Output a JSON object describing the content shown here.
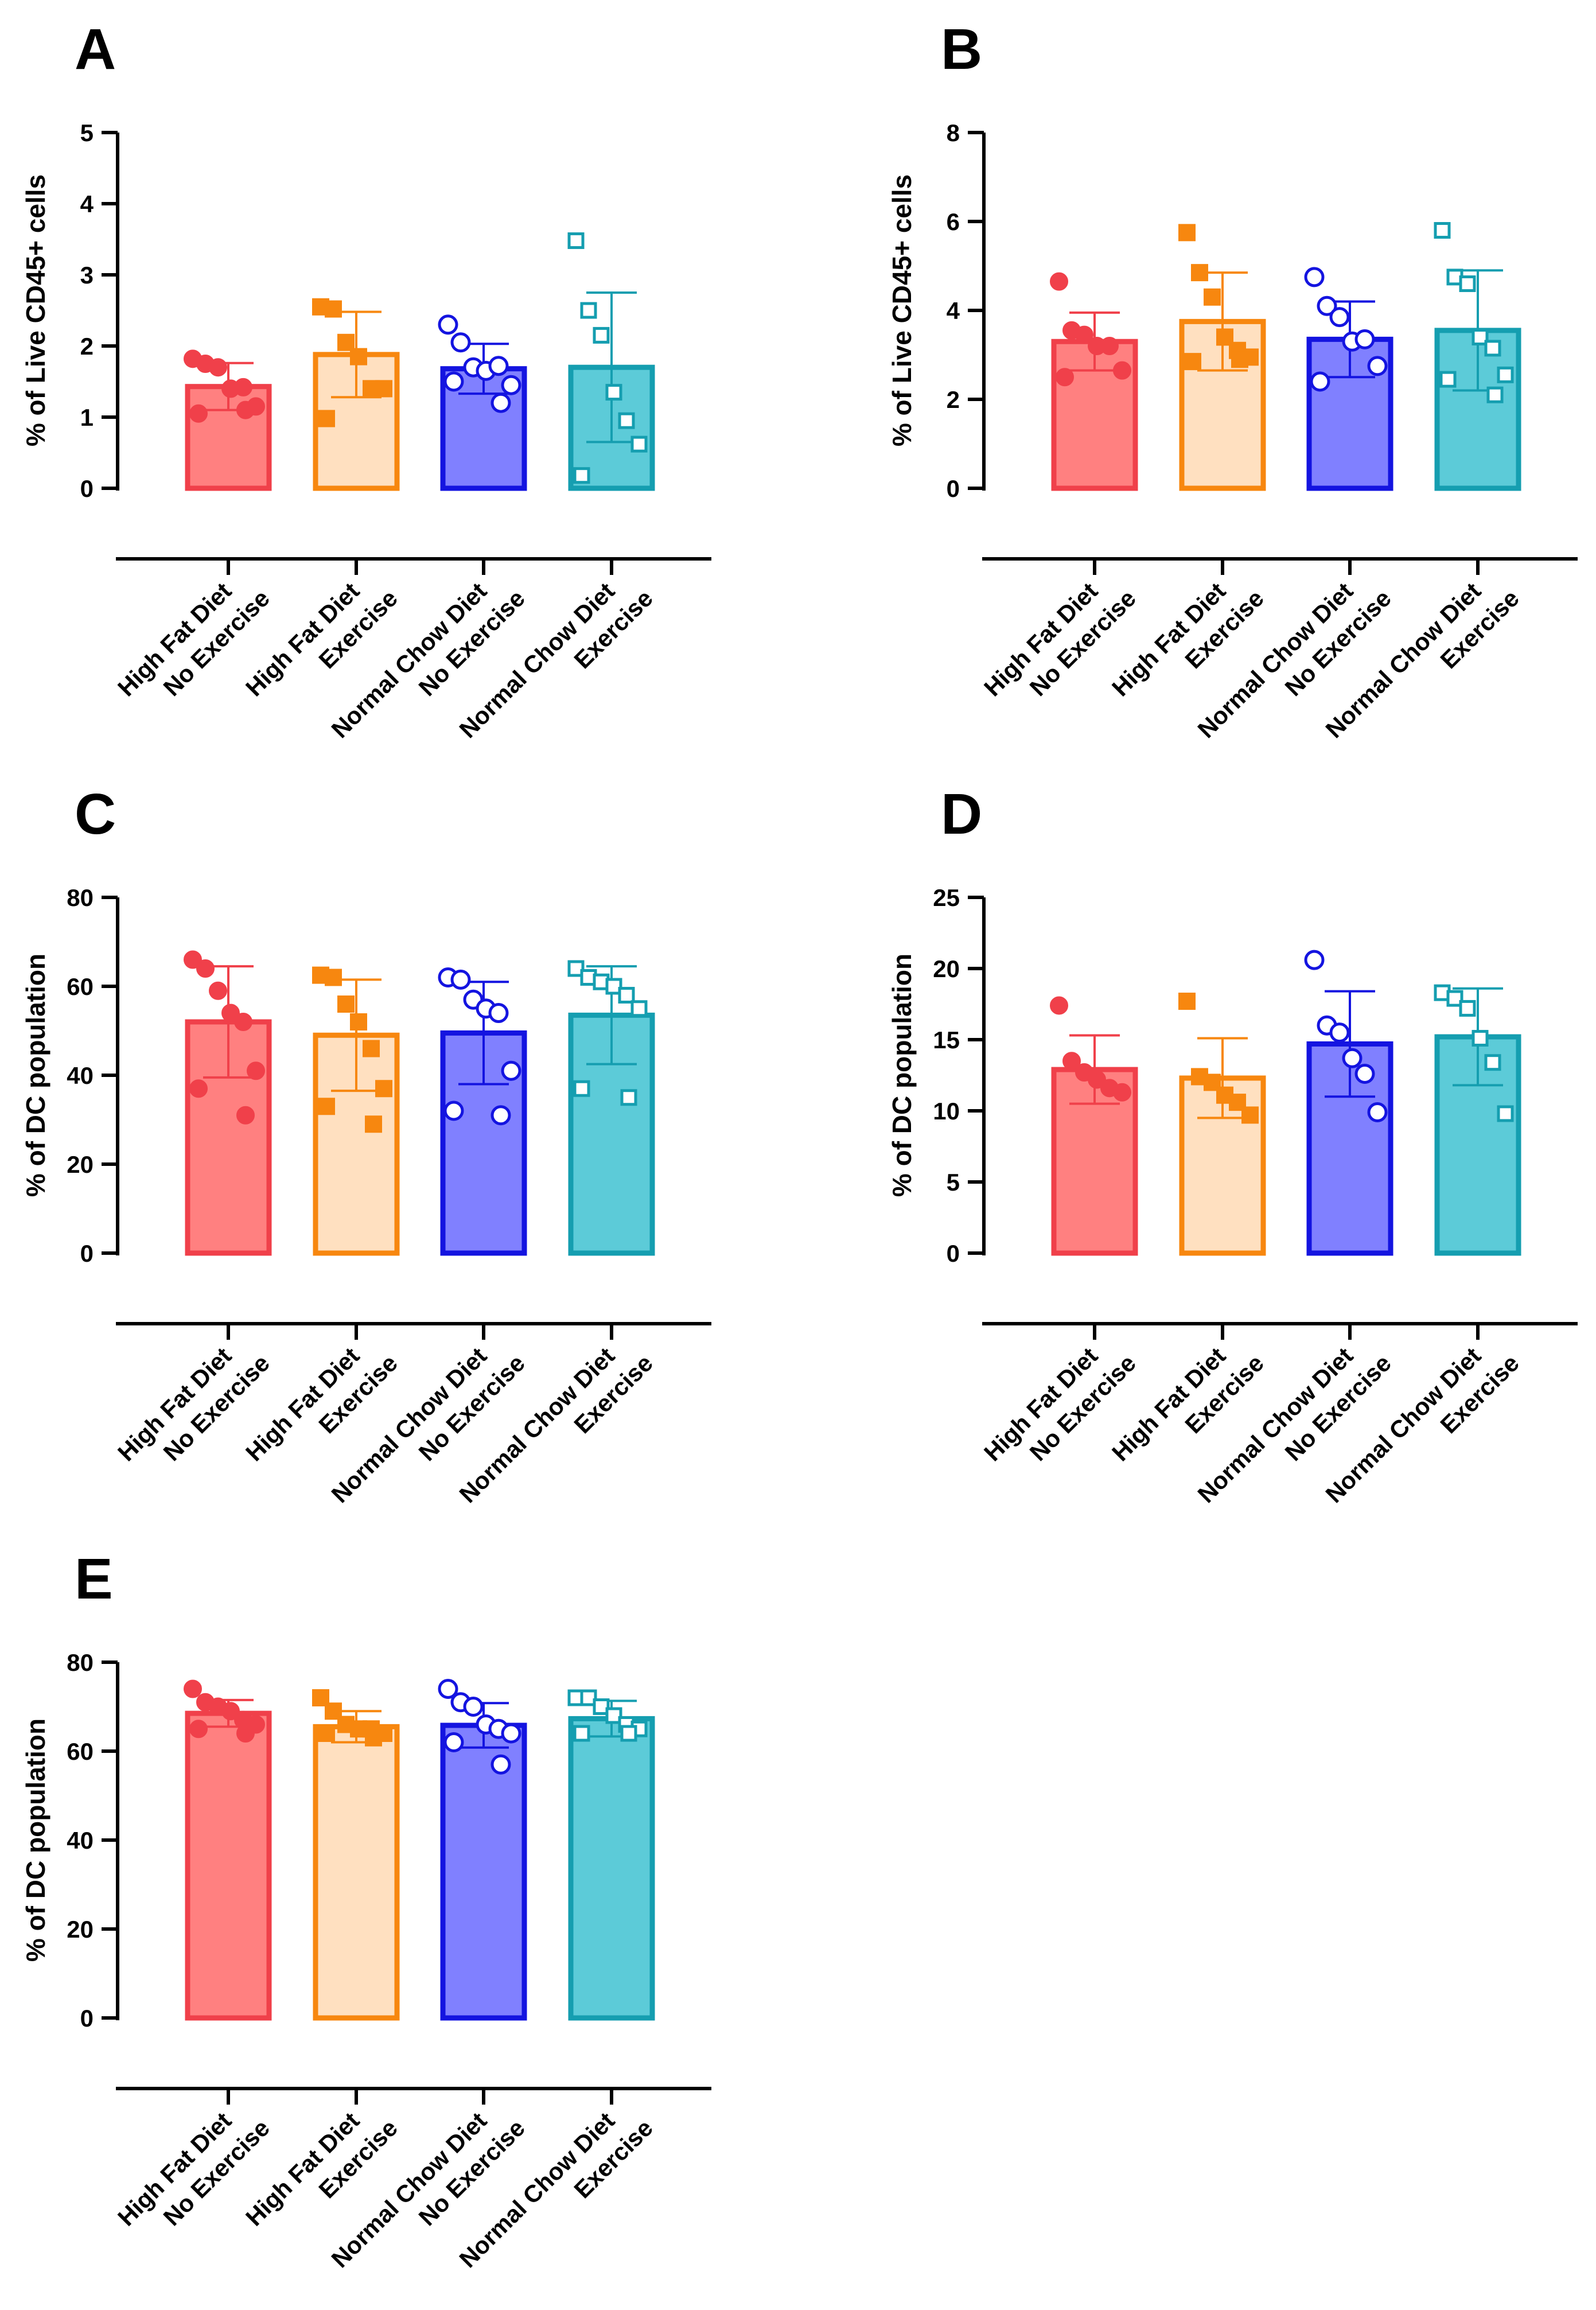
{
  "groups": [
    {
      "line1": "High Fat Diet",
      "line2": "No Exercise",
      "fill": "#FF8080",
      "stroke": "#F0404A",
      "marker": "circle",
      "hollow": false
    },
    {
      "line1": "High Fat Diet",
      "line2": "Exercise",
      "fill": "#FFE0C0",
      "stroke": "#F7870F",
      "marker": "square",
      "hollow": false
    },
    {
      "line1": "Normal Chow Diet",
      "line2": "No Exercise",
      "fill": "#8080FF",
      "stroke": "#1414E0",
      "marker": "circle",
      "hollow": true
    },
    {
      "line1": "Normal Chow Diet",
      "line2": "Exercise",
      "fill": "#5CCBD8",
      "stroke": "#159EB0",
      "marker": "square",
      "hollow": true
    }
  ],
  "chart_data": [
    {
      "panel": "A",
      "type": "bar",
      "ylabel": "% of Live CD45+ cells",
      "ylim": [
        0,
        5
      ],
      "yticks": [
        0,
        1,
        2,
        3,
        4,
        5
      ],
      "categories": [
        "High Fat Diet No Exercise",
        "High Fat Diet Exercise",
        "Normal Chow Diet No Exercise",
        "Normal Chow Diet Exercise"
      ],
      "values": [
        1.43,
        1.88,
        1.68,
        1.7
      ],
      "sd": [
        0.33,
        0.6,
        0.35,
        1.05
      ],
      "points": [
        [
          1.82,
          1.75,
          1.7,
          1.4,
          1.42,
          1.15,
          1.05,
          1.1
        ],
        [
          2.55,
          2.52,
          2.05,
          1.85,
          1.4,
          1.4,
          0.98
        ],
        [
          2.3,
          2.05,
          1.7,
          1.65,
          1.72,
          1.45,
          1.5,
          1.2
        ],
        [
          3.48,
          2.5,
          2.15,
          1.35,
          0.95,
          0.62,
          0.18
        ]
      ]
    },
    {
      "panel": "B",
      "type": "bar",
      "ylabel": "% of Live CD45+ cells",
      "ylim": [
        0,
        8
      ],
      "yticks": [
        0,
        2,
        4,
        6,
        8
      ],
      "categories": [
        "High Fat Diet No Exercise",
        "High Fat Diet Exercise",
        "Normal Chow Diet No Exercise",
        "Normal Chow Diet Exercise"
      ],
      "values": [
        3.3,
        3.75,
        3.35,
        3.55
      ],
      "sd": [
        0.65,
        1.1,
        0.85,
        1.35
      ],
      "points": [
        [
          4.65,
          3.55,
          3.45,
          3.2,
          3.2,
          2.65,
          2.5
        ],
        [
          5.75,
          4.85,
          4.3,
          3.4,
          3.1,
          2.95,
          2.85,
          2.9
        ],
        [
          4.75,
          4.1,
          3.85,
          3.3,
          3.35,
          2.75,
          2.4
        ],
        [
          5.8,
          4.75,
          4.6,
          3.4,
          3.15,
          2.55,
          2.45,
          2.1
        ]
      ]
    },
    {
      "panel": "C",
      "type": "bar",
      "ylabel": "% of DC population",
      "ylim": [
        0,
        80
      ],
      "yticks": [
        0,
        20,
        40,
        60,
        80
      ],
      "categories": [
        "High Fat Diet No Exercise",
        "High Fat Diet Exercise",
        "Normal Chow Diet No Exercise",
        "Normal Chow Diet Exercise"
      ],
      "values": [
        52,
        49,
        49.5,
        53.5
      ],
      "sd": [
        12.5,
        12.5,
        11.5,
        11
      ],
      "points": [
        [
          66,
          64,
          59,
          54,
          52,
          41,
          37,
          31
        ],
        [
          62.5,
          62,
          56,
          52,
          46,
          37,
          33,
          29
        ],
        [
          62,
          61.5,
          57,
          55,
          54,
          41,
          32,
          31
        ],
        [
          64,
          62,
          61,
          60,
          58,
          55,
          37,
          35
        ]
      ]
    },
    {
      "panel": "D",
      "type": "bar",
      "ylabel": "% of DC population",
      "ylim": [
        0,
        25
      ],
      "yticks": [
        0,
        5,
        10,
        15,
        20,
        25
      ],
      "categories": [
        "High Fat Diet No Exercise",
        "High Fat Diet Exercise",
        "Normal Chow Diet No Exercise",
        "Normal Chow Diet Exercise"
      ],
      "values": [
        12.9,
        12.3,
        14.7,
        15.2
      ],
      "sd": [
        2.4,
        2.8,
        3.7,
        3.4
      ],
      "points": [
        [
          17.4,
          13.5,
          12.7,
          12.2,
          11.6,
          11.3
        ],
        [
          17.7,
          12.4,
          12.0,
          11.1,
          10.6,
          9.7
        ],
        [
          20.6,
          16.0,
          15.5,
          13.7,
          12.6,
          9.9
        ],
        [
          18.3,
          17.9,
          17.2,
          15.1,
          13.4,
          9.8
        ]
      ]
    },
    {
      "panel": "E",
      "type": "bar",
      "ylabel": "% of DC population",
      "ylim": [
        0,
        80
      ],
      "yticks": [
        0,
        20,
        40,
        60,
        80
      ],
      "categories": [
        "High Fat Diet No Exercise",
        "High Fat Diet Exercise",
        "Normal Chow Diet No Exercise",
        "Normal Chow Diet Exercise"
      ],
      "values": [
        68.5,
        65.5,
        65.8,
        67.3
      ],
      "sd": [
        3,
        3.5,
        5,
        4
      ],
      "points": [
        [
          74,
          71,
          70,
          69,
          67,
          66,
          65,
          64
        ],
        [
          72,
          69,
          66,
          65,
          65,
          64,
          64,
          63
        ],
        [
          74,
          71,
          70,
          66,
          65,
          64,
          62,
          57
        ],
        [
          72,
          72,
          70,
          68,
          66,
          65,
          64,
          64
        ]
      ]
    }
  ]
}
